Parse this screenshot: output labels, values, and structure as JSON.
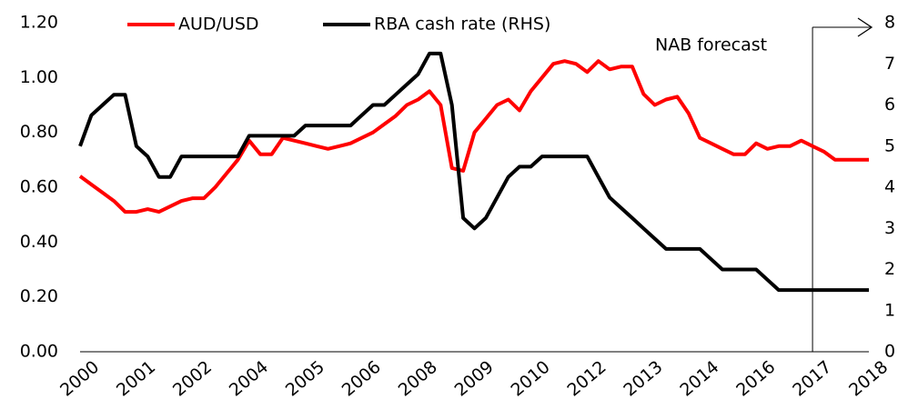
{
  "chart_data": {
    "type": "line",
    "categories": [
      "2000",
      null,
      null,
      null,
      null,
      "2001",
      null,
      null,
      null,
      null,
      "2002",
      null,
      null,
      null,
      null,
      "2004",
      null,
      null,
      null,
      null,
      "2005",
      null,
      null,
      null,
      null,
      "2006",
      null,
      null,
      null,
      null,
      "2008",
      null,
      null,
      null,
      null,
      "2009",
      null,
      null,
      null,
      null,
      "2010",
      null,
      null,
      null,
      null,
      "2012",
      null,
      null,
      null,
      null,
      "2013",
      null,
      null,
      null,
      null,
      "2014",
      null,
      null,
      null,
      null,
      "2016",
      null,
      null,
      null,
      null,
      "2017",
      null,
      null,
      null,
      null,
      "2018"
    ],
    "series": [
      {
        "name": "AUD/USD",
        "color": "#ff0000",
        "axis": "y",
        "values": [
          0.64,
          0.61,
          0.58,
          0.55,
          0.51,
          0.51,
          0.52,
          0.51,
          0.53,
          0.55,
          0.56,
          0.56,
          0.6,
          0.65,
          0.7,
          0.77,
          0.72,
          0.72,
          0.78,
          0.77,
          0.76,
          0.75,
          0.74,
          0.75,
          0.76,
          0.78,
          0.8,
          0.83,
          0.86,
          0.9,
          0.92,
          0.95,
          0.9,
          0.67,
          0.66,
          0.8,
          0.85,
          0.9,
          0.92,
          0.88,
          0.95,
          1.0,
          1.05,
          1.06,
          1.05,
          1.02,
          1.06,
          1.03,
          1.04,
          1.04,
          0.94,
          0.9,
          0.92,
          0.93,
          0.87,
          0.78,
          0.76,
          0.74,
          0.72,
          0.72,
          0.76,
          0.74,
          0.75,
          0.75,
          0.77,
          0.75,
          0.73,
          0.7,
          0.7,
          0.7,
          0.7
        ]
      },
      {
        "name": "RBA cash rate (RHS)",
        "color": "#000000",
        "axis": "y2",
        "values": [
          5.0,
          5.75,
          6.0,
          6.25,
          6.25,
          5.0,
          4.75,
          4.25,
          4.25,
          4.75,
          4.75,
          4.75,
          4.75,
          4.75,
          4.75,
          5.25,
          5.25,
          5.25,
          5.25,
          5.25,
          5.5,
          5.5,
          5.5,
          5.5,
          5.5,
          5.75,
          6.0,
          6.0,
          6.25,
          6.5,
          6.75,
          7.25,
          7.25,
          6.0,
          3.25,
          3.0,
          3.25,
          3.75,
          4.25,
          4.5,
          4.5,
          4.75,
          4.75,
          4.75,
          4.75,
          4.75,
          4.25,
          3.75,
          3.5,
          3.25,
          3.0,
          2.75,
          2.5,
          2.5,
          2.5,
          2.5,
          2.25,
          2.0,
          2.0,
          2.0,
          2.0,
          1.75,
          1.5,
          1.5,
          1.5,
          1.5,
          1.5,
          1.5,
          1.5,
          1.5,
          1.5
        ]
      }
    ],
    "ylim": [
      0,
      1.2
    ],
    "yticks": [
      {
        "value": 0,
        "label": "0.00"
      },
      {
        "value": 0.2,
        "label": "0.20"
      },
      {
        "value": 0.4,
        "label": "0.40"
      },
      {
        "value": 0.6,
        "label": "0.60"
      },
      {
        "value": 0.8,
        "label": "0.80"
      },
      {
        "value": 1.0,
        "label": "1.00"
      },
      {
        "value": 1.2,
        "label": "1.20"
      }
    ],
    "y2lim": [
      0,
      8
    ],
    "y2ticks": [
      0,
      1,
      2,
      3,
      4,
      5,
      6,
      7,
      8
    ],
    "annotation": {
      "text": "NAB forecast",
      "x": 65
    }
  }
}
